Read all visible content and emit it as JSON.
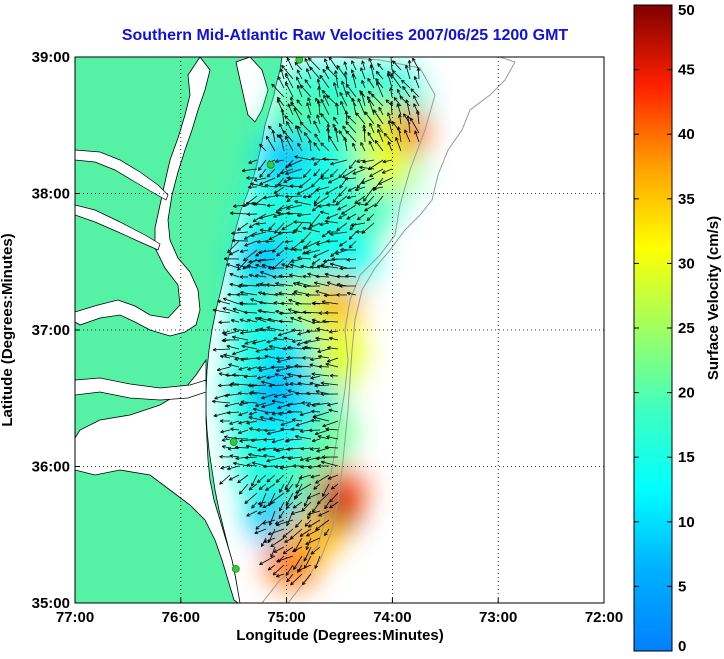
{
  "chart_data": {
    "type": "heatmap",
    "title": "Southern Mid-Atlantic Raw Velocities 2007/06/25 1200 GMT",
    "xlabel": "Longitude (Degrees:Minutes)",
    "ylabel": "Latitude (Degrees:Minutes)",
    "colorbar_label": "Surface Velocity (cm/s)",
    "x_ticks": [
      "77:00",
      "76:00",
      "75:00",
      "74:00",
      "73:00",
      "72:00"
    ],
    "y_ticks": [
      "39:00",
      "38:00",
      "37:00",
      "36:00",
      "35:00"
    ],
    "colorbar_ticks": [
      "0",
      "5",
      "10",
      "15",
      "20",
      "25",
      "30",
      "35",
      "40",
      "45",
      "50"
    ],
    "xlim": [
      -77,
      -72
    ],
    "ylim": [
      35,
      39
    ],
    "clim": [
      0,
      50
    ],
    "grid": true,
    "colormap": "jet",
    "land_color": "#55f2a6",
    "arrow_color": "#000000",
    "station_color": "#33cc33",
    "stations": [
      {
        "lon": -74.88,
        "lat": 38.98
      },
      {
        "lon": -75.15,
        "lat": 38.21
      },
      {
        "lon": -75.5,
        "lat": 36.18
      },
      {
        "lon": -75.48,
        "lat": 35.25
      }
    ],
    "velocity_regions": [
      {
        "lon": -73.9,
        "lat": 38.45,
        "speed": 40
      },
      {
        "lon": -74.2,
        "lat": 38.5,
        "speed": 28
      },
      {
        "lon": -74.05,
        "lat": 38.2,
        "speed": 30
      },
      {
        "lon": -74.5,
        "lat": 38.6,
        "speed": 18
      },
      {
        "lon": -74.9,
        "lat": 38.6,
        "speed": 20
      },
      {
        "lon": -75.0,
        "lat": 38.25,
        "speed": 8
      },
      {
        "lon": -74.7,
        "lat": 38.05,
        "speed": 15
      },
      {
        "lon": -74.3,
        "lat": 37.8,
        "speed": 20
      },
      {
        "lon": -74.5,
        "lat": 37.65,
        "speed": 14
      },
      {
        "lon": -74.8,
        "lat": 37.6,
        "speed": 16
      },
      {
        "lon": -75.2,
        "lat": 37.5,
        "speed": 8
      },
      {
        "lon": -74.5,
        "lat": 37.4,
        "speed": 12
      },
      {
        "lon": -74.55,
        "lat": 37.2,
        "speed": 36
      },
      {
        "lon": -74.9,
        "lat": 37.15,
        "speed": 28
      },
      {
        "lon": -75.1,
        "lat": 37.0,
        "speed": 15
      },
      {
        "lon": -74.5,
        "lat": 36.85,
        "speed": 30
      },
      {
        "lon": -74.6,
        "lat": 36.65,
        "speed": 28
      },
      {
        "lon": -75.0,
        "lat": 36.75,
        "speed": 10
      },
      {
        "lon": -75.1,
        "lat": 36.5,
        "speed": 6
      },
      {
        "lon": -74.75,
        "lat": 36.45,
        "speed": 10
      },
      {
        "lon": -74.6,
        "lat": 36.25,
        "speed": 22
      },
      {
        "lon": -75.0,
        "lat": 36.2,
        "speed": 12
      },
      {
        "lon": -74.8,
        "lat": 35.95,
        "speed": 20
      },
      {
        "lon": -74.5,
        "lat": 35.8,
        "speed": 42
      },
      {
        "lon": -74.6,
        "lat": 35.65,
        "speed": 48
      },
      {
        "lon": -74.95,
        "lat": 35.7,
        "speed": 18
      },
      {
        "lon": -75.1,
        "lat": 35.6,
        "speed": 8
      },
      {
        "lon": -74.85,
        "lat": 35.45,
        "speed": 20
      },
      {
        "lon": -74.95,
        "lat": 35.3,
        "speed": 40
      },
      {
        "lon": -74.75,
        "lat": 35.5,
        "speed": 36
      }
    ]
  }
}
